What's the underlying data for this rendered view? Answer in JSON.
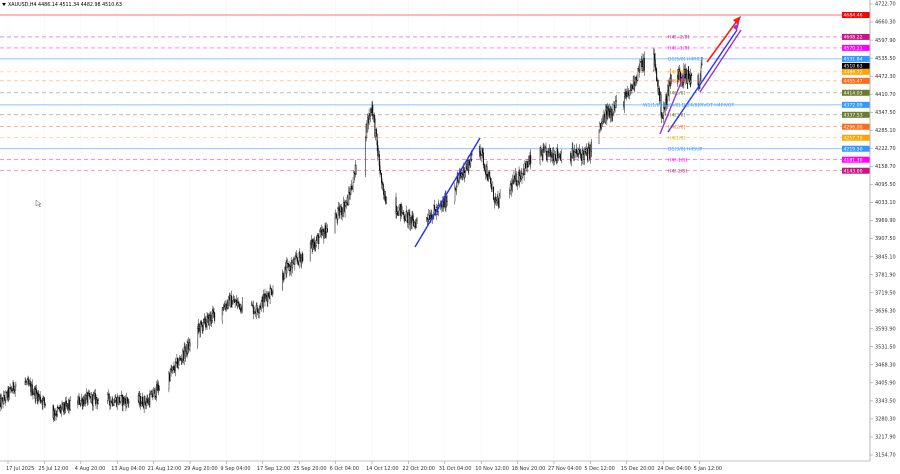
{
  "header": {
    "symbol_text": "XAUUSD,H4  4486.14 4511.34 4482.98 4510.63",
    "collapse_icon": "triangle-down-icon"
  },
  "chart_data": {
    "type": "candlestick",
    "timeframe": "H4",
    "ylim": [
      3154.7,
      4722.7
    ],
    "y_ticks": [
      "4722.70",
      "4660.30",
      "4597.90",
      "4535.50",
      "4472.30",
      "4410.70",
      "4347.50",
      "4285.10",
      "4222.70",
      "4158.70",
      "4095.50",
      "4033.10",
      "3969.90",
      "3907.50",
      "3845.10",
      "3781.90",
      "3719.50",
      "3656.30",
      "3593.90",
      "3531.50",
      "3468.30",
      "3405.90",
      "3343.50",
      "3280.30",
      "3217.90",
      "3154.70"
    ],
    "x_ticks": [
      "17 Jul 2025",
      "25 Jul 12:00",
      "4 Aug 20:00",
      "13 Aug 04:00",
      "21 Aug 12:00",
      "29 Aug 20:00",
      "9 Sep 04:00",
      "17 Sep 12:00",
      "25 Sep 20:00",
      "6 Oct 04:00",
      "14 Oct 12:00",
      "22 Oct 20:00",
      "31 Oct 04:00",
      "10 Nov 12:00",
      "18 Nov 20:00",
      "27 Nov 04:00",
      "5 Dec 12:00",
      "15 Dec 20:00",
      "24 Dec 04:00",
      "5 Jan 12:00"
    ],
    "price_path": [
      {
        "t": "2025-07-15",
        "p": 3328
      },
      {
        "t": "2025-07-20",
        "p": 3422
      },
      {
        "t": "2025-07-28",
        "p": 3300
      },
      {
        "t": "2025-08-06",
        "p": 3350
      },
      {
        "t": "2025-08-20",
        "p": 3340
      },
      {
        "t": "2025-08-26",
        "p": 3450
      },
      {
        "t": "2025-09-01",
        "p": 3590
      },
      {
        "t": "2025-09-10",
        "p": 3690
      },
      {
        "t": "2025-09-16",
        "p": 3660
      },
      {
        "t": "2025-09-23",
        "p": 3800
      },
      {
        "t": "2025-10-05",
        "p": 3955
      },
      {
        "t": "2025-10-09",
        "p": 4040
      },
      {
        "t": "2025-10-14T12:00",
        "p": 4372
      },
      {
        "t": "2025-10-17",
        "p": 4060
      },
      {
        "t": "2025-10-24",
        "p": 3960
      },
      {
        "t": "2025-10-30",
        "p": 4010
      },
      {
        "t": "2025-11-10",
        "p": 4230
      },
      {
        "t": "2025-11-14",
        "p": 4025
      },
      {
        "t": "2025-11-23",
        "p": 4200
      },
      {
        "t": "2025-12-05",
        "p": 4200
      },
      {
        "t": "2025-12-10",
        "p": 4340
      },
      {
        "t": "2025-12-16",
        "p": 4400
      },
      {
        "t": "2025-12-19",
        "p": 4510
      },
      {
        "t": "2025-12-22",
        "p": 4535
      },
      {
        "t": "2025-12-24",
        "p": 4330
      },
      {
        "t": "2025-12-27",
        "p": 4480
      },
      {
        "t": "2026-01-02",
        "p": 4470
      },
      {
        "t": "2026-01-05",
        "p": 4420
      },
      {
        "t": "2026-01-06T08:00",
        "p": 4510
      }
    ],
    "levels": [
      {
        "price": 4684.46,
        "tag": "4684.46",
        "label": "",
        "color": "#ff0000",
        "style": "solid"
      },
      {
        "price": 4608.22,
        "tag": "4608.22",
        "label": "H4[+2/8]",
        "color": "#c71585",
        "style": "dash"
      },
      {
        "price": 4570.11,
        "tag": "4570.11",
        "label": "H4[+1/8]",
        "color": "#ff00ff",
        "style": "dash"
      },
      {
        "price": 4531.84,
        "tag": "4531.84",
        "label": "D1[5/8] H4R03",
        "color": "#3399ff",
        "style": "solid"
      },
      {
        "price": 4507.53,
        "tag": "4510.63",
        "label": "",
        "color": "#000000",
        "style": "none"
      },
      {
        "price": 4486.72,
        "tag": "4486.72",
        "label": "H4[7/8]",
        "color": "#ffa500",
        "style": "dash"
      },
      {
        "price": 4455.47,
        "tag": "4455.47",
        "label": "H4[6/8]",
        "color": "#ff6a1a",
        "style": "dash"
      },
      {
        "price": 4414.03,
        "tag": "4414.03",
        "label": "H4[5/8]",
        "color": "#6b7b2f",
        "style": "dash"
      },
      {
        "price": 4372.09,
        "tag": "4372.09",
        "label": "W1[1/8] D1[4/8] D1[4/8]PIVOT H4PIVOT",
        "color": "#3399ff",
        "style": "solid"
      },
      {
        "price": 4337.53,
        "tag": "4337.53",
        "label": "H4[3/8]",
        "color": "#6b7b2f",
        "style": "dash"
      },
      {
        "price": 4296.0,
        "tag": "4296.00",
        "label": "H4[2/8]",
        "color": "#ff6a1a",
        "style": "dash"
      },
      {
        "price": 4257.7,
        "tag": "4257.70",
        "label": "H4[1/8]",
        "color": "#ffa500",
        "style": "dash"
      },
      {
        "price": 4219.5,
        "tag": "4219.50",
        "label": "D1[3/8] H4SUP",
        "color": "#3399ff",
        "style": "solid"
      },
      {
        "price": 4181.3,
        "tag": "4181.30",
        "label": "H4[-1/8]",
        "color": "#ff00ff",
        "style": "dash"
      },
      {
        "price": 4143.0,
        "tag": "4143.00",
        "label": "H4[-2/8]",
        "color": "#c71585",
        "style": "dash"
      }
    ],
    "colors": {
      "candle": "#000000",
      "grid": "#e4e4e4",
      "trend_blue": "#2233ff",
      "trend_purple": "#9933cc",
      "arrow_red": "#ff1a1a"
    },
    "grid": true
  }
}
